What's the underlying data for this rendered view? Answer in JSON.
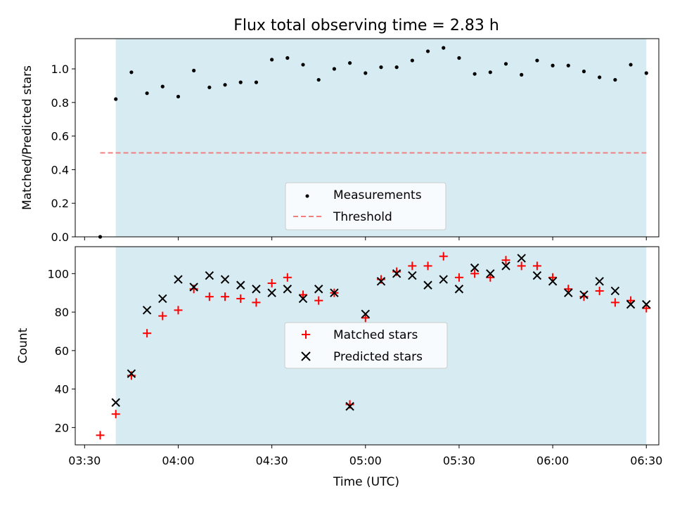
{
  "chart_data": [
    {
      "type": "scatter",
      "title": "Flux total observing time = 2.83 h",
      "ylabel": "Matched/Predicted stars",
      "xlabel": "",
      "ylim": [
        0,
        1.18
      ],
      "xlim": [
        "03:27",
        "06:34"
      ],
      "yticks": [
        0.0,
        0.2,
        0.4,
        0.6,
        0.8,
        1.0
      ],
      "ytick_labels": [
        "0.0",
        "0.2",
        "0.4",
        "0.6",
        "0.8",
        "1.0"
      ],
      "legend_placement": "lower center",
      "shaded_span": [
        "03:40",
        "06:30"
      ],
      "shade_color": "#add8e6",
      "series": [
        {
          "name": "Measurements",
          "marker": "dot",
          "color": "#000000",
          "x": [
            "03:35",
            "03:40",
            "03:45",
            "03:50",
            "03:55",
            "04:00",
            "04:05",
            "04:10",
            "04:15",
            "04:20",
            "04:25",
            "04:30",
            "04:35",
            "04:40",
            "04:45",
            "04:50",
            "04:55",
            "05:00",
            "05:05",
            "05:10",
            "05:15",
            "05:20",
            "05:25",
            "05:30",
            "05:35",
            "05:40",
            "05:45",
            "05:50",
            "05:55",
            "06:00",
            "06:05",
            "06:10",
            "06:15",
            "06:20",
            "06:25",
            "06:30"
          ],
          "y": [
            0.0,
            0.82,
            0.98,
            0.855,
            0.895,
            0.835,
            0.99,
            0.89,
            0.905,
            0.92,
            0.92,
            1.055,
            1.065,
            1.025,
            0.935,
            1.0,
            1.035,
            0.975,
            1.01,
            1.01,
            1.05,
            1.105,
            1.125,
            1.065,
            0.97,
            0.98,
            1.03,
            0.965,
            1.05,
            1.02,
            1.02,
            0.985,
            0.95,
            0.935,
            1.025,
            0.975
          ]
        },
        {
          "name": "Threshold",
          "marker": "dashed-line",
          "color": "#f08080",
          "x": [
            "03:35",
            "06:30"
          ],
          "y": [
            0.5,
            0.5
          ]
        }
      ]
    },
    {
      "type": "scatter",
      "title": "",
      "ylabel": "Count",
      "xlabel": "Time (UTC)",
      "ylim": [
        11,
        114
      ],
      "xlim": [
        "03:27",
        "06:34"
      ],
      "yticks": [
        20,
        40,
        60,
        80,
        100
      ],
      "ytick_labels": [
        "20",
        "40",
        "60",
        "80",
        "100"
      ],
      "xtick_labels": [
        "03:30",
        "04:00",
        "04:30",
        "05:00",
        "05:30",
        "06:00",
        "06:30"
      ],
      "legend_placement": "center",
      "shaded_span": [
        "03:40",
        "06:30"
      ],
      "shade_color": "#add8e6",
      "series": [
        {
          "name": "Matched stars",
          "marker": "plus",
          "color": "#ff0000",
          "x": [
            "03:35",
            "03:40",
            "03:45",
            "03:50",
            "03:55",
            "04:00",
            "04:05",
            "04:10",
            "04:15",
            "04:20",
            "04:25",
            "04:30",
            "04:35",
            "04:40",
            "04:45",
            "04:50",
            "04:55",
            "05:00",
            "05:05",
            "05:10",
            "05:15",
            "05:20",
            "05:25",
            "05:30",
            "05:35",
            "05:40",
            "05:45",
            "05:50",
            "05:55",
            "06:00",
            "06:05",
            "06:10",
            "06:15",
            "06:20",
            "06:25",
            "06:30"
          ],
          "y": [
            16,
            27,
            47,
            69,
            78,
            81,
            92,
            88,
            88,
            87,
            85,
            95,
            98,
            89,
            86,
            90,
            32,
            77,
            97,
            101,
            104,
            104,
            109,
            98,
            100,
            98,
            107,
            104,
            104,
            98,
            92,
            88,
            91,
            85,
            86,
            82
          ]
        },
        {
          "name": "Predicted stars",
          "marker": "x",
          "color": "#000000",
          "x": [
            "03:40",
            "03:45",
            "03:50",
            "03:55",
            "04:00",
            "04:05",
            "04:10",
            "04:15",
            "04:20",
            "04:25",
            "04:30",
            "04:35",
            "04:40",
            "04:45",
            "04:50",
            "04:55",
            "05:00",
            "05:05",
            "05:10",
            "05:15",
            "05:20",
            "05:25",
            "05:30",
            "05:35",
            "05:40",
            "05:45",
            "05:50",
            "05:55",
            "06:00",
            "06:05",
            "06:10",
            "06:15",
            "06:20",
            "06:25",
            "06:30"
          ],
          "y": [
            33,
            48,
            81,
            87,
            97,
            93,
            99,
            97,
            94,
            92,
            90,
            92,
            87,
            92,
            90,
            31,
            79,
            96,
            100,
            99,
            94,
            97,
            92,
            103,
            100,
            104,
            108,
            99,
            96,
            90,
            89,
            96,
            91,
            84,
            84
          ]
        }
      ]
    }
  ]
}
